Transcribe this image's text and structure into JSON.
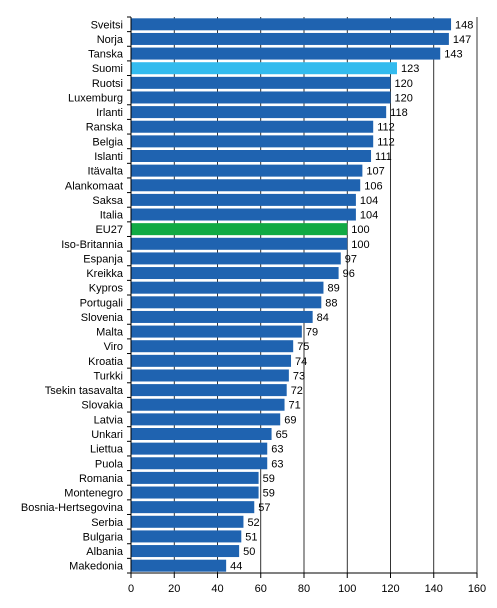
{
  "chart_data": {
    "type": "bar",
    "orientation": "horizontal",
    "categories": [
      "Sveitsi",
      "Norja",
      "Tanska",
      "Suomi",
      "Ruotsi",
      "Luxemburg",
      "Irlanti",
      "Ranska",
      "Belgia",
      "Islanti",
      "Itävalta",
      "Alankomaat",
      "Saksa",
      "Italia",
      "EU27",
      "Iso-Britannia",
      "Espanja",
      "Kreikka",
      "Kypros",
      "Portugali",
      "Slovenia",
      "Malta",
      "Viro",
      "Kroatia",
      "Turkki",
      "Tsekin tasavalta",
      "Slovakia",
      "Latvia",
      "Unkari",
      "Liettua",
      "Puola",
      "Romania",
      "Montenegro",
      "Bosnia-Hertsegovina",
      "Serbia",
      "Bulgaria",
      "Albania",
      "Makedonia"
    ],
    "values": [
      148,
      147,
      143,
      123,
      120,
      120,
      118,
      112,
      112,
      111,
      107,
      106,
      104,
      104,
      100,
      100,
      97,
      96,
      89,
      88,
      84,
      79,
      75,
      74,
      73,
      72,
      71,
      69,
      65,
      63,
      63,
      59,
      59,
      57,
      52,
      51,
      50,
      44
    ],
    "highlight": {
      "Suomi": "#33bbee",
      "EU27": "#11aa44"
    },
    "bar_color": "#1f63b0",
    "xlim": [
      0,
      160
    ],
    "xticks": [
      "0",
      "20",
      "40",
      "60",
      "80",
      "100",
      "120",
      "140",
      "160"
    ],
    "grid": "vertical lines at x ticks",
    "title": "",
    "xlabel": "",
    "ylabel": ""
  }
}
